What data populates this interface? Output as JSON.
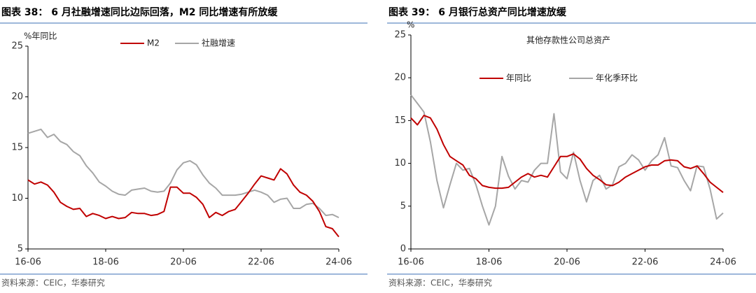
{
  "chart_data": [
    {
      "type": "line",
      "title": "图表 38： 6 月社融增速同比边际回落，M2 同比增速有所放缓",
      "y_label": "%年同比",
      "source": "资料来源：CEIC，华泰研究",
      "x": [
        0,
        2,
        4,
        6,
        8,
        10,
        12,
        14,
        16,
        18,
        20,
        22,
        24,
        26,
        28,
        30,
        32,
        34,
        36,
        38,
        40,
        42,
        44,
        46,
        48,
        50,
        52,
        54,
        56,
        58,
        60,
        62,
        64,
        66,
        68,
        70,
        72,
        74,
        76,
        78,
        80,
        82,
        84,
        86,
        88,
        90,
        92,
        94,
        96
      ],
      "xlim": [
        0,
        96
      ],
      "xticks": [
        {
          "value": 0,
          "label": "16-06"
        },
        {
          "value": 24,
          "label": "18-06"
        },
        {
          "value": 48,
          "label": "20-06"
        },
        {
          "value": 72,
          "label": "22-06"
        },
        {
          "value": 96,
          "label": "24-06"
        }
      ],
      "ylim": [
        5,
        25
      ],
      "yticks": [
        5,
        10,
        15,
        20,
        25
      ],
      "series": [
        {
          "name": "M2",
          "color": "#c00000",
          "values": [
            11.8,
            11.4,
            11.6,
            11.3,
            10.6,
            9.6,
            9.2,
            8.9,
            9.0,
            8.2,
            8.5,
            8.3,
            8.0,
            8.2,
            8.0,
            8.1,
            8.6,
            8.5,
            8.5,
            8.3,
            8.4,
            8.7,
            11.1,
            11.1,
            10.5,
            10.5,
            10.1,
            9.4,
            8.1,
            8.6,
            8.3,
            8.7,
            8.9,
            9.7,
            10.5,
            11.4,
            12.2,
            12.0,
            11.8,
            12.9,
            12.4,
            11.3,
            10.6,
            10.3,
            9.7,
            8.7,
            7.2,
            7.0,
            6.2
          ]
        },
        {
          "name": "社融增速",
          "color": "#a6a6a6",
          "values": [
            16.4,
            16.6,
            16.8,
            16.0,
            16.3,
            15.6,
            15.3,
            14.6,
            14.2,
            13.2,
            12.5,
            11.6,
            11.2,
            10.7,
            10.4,
            10.3,
            10.8,
            10.9,
            11.0,
            10.7,
            10.6,
            10.7,
            11.5,
            12.8,
            13.5,
            13.7,
            13.3,
            12.3,
            11.5,
            11.0,
            10.3,
            10.3,
            10.3,
            10.4,
            10.6,
            10.8,
            10.6,
            10.3,
            9.6,
            9.9,
            10.0,
            9.0,
            9.0,
            9.4,
            9.5,
            9.0,
            8.3,
            8.4,
            8.1
          ]
        }
      ]
    },
    {
      "type": "line",
      "title": "图表 39： 6 月银行总资产同比增速放缓",
      "y_label": "%",
      "annotation": "其他存款性公司总资产",
      "source": "资料来源：CEIC，华泰研究",
      "x": [
        0,
        2,
        4,
        6,
        8,
        10,
        12,
        14,
        16,
        18,
        20,
        22,
        24,
        26,
        28,
        30,
        32,
        34,
        36,
        38,
        40,
        42,
        44,
        46,
        48,
        50,
        52,
        54,
        56,
        58,
        60,
        62,
        64,
        66,
        68,
        70,
        72,
        74,
        76,
        78,
        80,
        82,
        84,
        86,
        88,
        90,
        92,
        94,
        96
      ],
      "xlim": [
        0,
        96
      ],
      "xticks": [
        {
          "value": 0,
          "label": "16-06"
        },
        {
          "value": 24,
          "label": "18-06"
        },
        {
          "value": 48,
          "label": "20-06"
        },
        {
          "value": 72,
          "label": "22-06"
        },
        {
          "value": 96,
          "label": "24-06"
        }
      ],
      "ylim": [
        0,
        25
      ],
      "yticks": [
        0,
        5,
        10,
        15,
        20,
        25
      ],
      "series": [
        {
          "name": "年同比",
          "color": "#c00000",
          "values": [
            15.3,
            14.5,
            15.6,
            15.3,
            14.0,
            12.2,
            10.8,
            10.3,
            9.8,
            8.6,
            8.2,
            7.4,
            7.2,
            7.1,
            7.1,
            7.2,
            7.8,
            8.4,
            8.8,
            8.4,
            8.6,
            8.4,
            9.6,
            10.8,
            10.8,
            11.1,
            10.5,
            9.4,
            8.6,
            8.1,
            7.5,
            7.4,
            7.8,
            8.4,
            8.8,
            9.2,
            9.6,
            9.8,
            9.8,
            10.3,
            10.4,
            10.3,
            9.6,
            9.4,
            9.7,
            8.8,
            7.8,
            7.2,
            6.6
          ]
        },
        {
          "name": "年化季环比",
          "color": "#a6a6a6",
          "values": [
            18.0,
            17.0,
            16.0,
            12.5,
            8.0,
            4.8,
            7.5,
            10.0,
            9.2,
            9.4,
            7.5,
            5.0,
            2.8,
            5.0,
            10.8,
            8.5,
            7.0,
            8.0,
            7.8,
            9.2,
            10.0,
            10.0,
            15.8,
            9.0,
            8.2,
            11.3,
            8.0,
            5.5,
            8.0,
            8.6,
            7.0,
            7.5,
            9.6,
            10.0,
            11.0,
            10.4,
            9.2,
            10.3,
            11.0,
            13.0,
            9.7,
            9.5,
            8.0,
            6.8,
            9.7,
            9.6,
            7.0,
            3.5,
            4.2
          ]
        }
      ]
    }
  ]
}
